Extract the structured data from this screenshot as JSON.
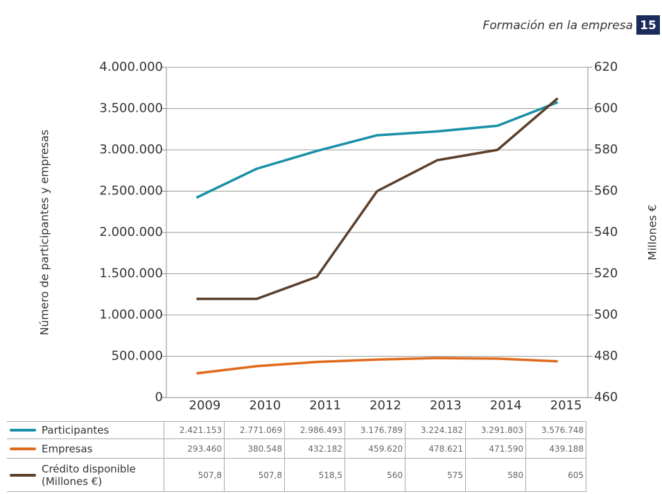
{
  "header": {
    "title": "Formación en la empresa",
    "page": 15
  },
  "chart_data": {
    "type": "line",
    "categories": [
      "2009",
      "2010",
      "2011",
      "2012",
      "2013",
      "2014",
      "2015"
    ],
    "ylabel": "Número de participantes y empresas",
    "y2label": "Millones €",
    "ylim": [
      0,
      4000000
    ],
    "yticks": [
      0,
      {
        "value": 500000,
        "label": "500.000"
      },
      {
        "value": 1000000,
        "label": "1.000.000"
      },
      {
        "value": 1500000,
        "label": "1.500.000"
      },
      {
        "value": 2000000,
        "label": "2.000.000"
      },
      {
        "value": 2500000,
        "label": "2.500.000"
      },
      {
        "value": 3000000,
        "label": "3.000.000"
      },
      {
        "value": 3500000,
        "label": "3.500.000"
      },
      {
        "value": 4000000,
        "label": "4.000.000"
      }
    ],
    "y2lim": [
      460,
      620
    ],
    "y2ticks": [
      460,
      480,
      500,
      520,
      540,
      560,
      580,
      600,
      620
    ],
    "grid": true,
    "series": [
      {
        "name": "Participantes",
        "color": "#1a8fa8",
        "values": [
          2421153,
          2771069,
          2986493,
          3176789,
          3224182,
          3291803,
          3576748
        ],
        "value_labels": [
          "2.421.153",
          "2.771.069",
          "2.986.493",
          "3.176.789",
          "3.224.182",
          "3.291.803",
          "3.576.748"
        ]
      },
      {
        "name": "Empresas",
        "color": "#e06a1b",
        "values": [
          293460,
          380548,
          432182,
          459620,
          478621,
          471590,
          439188
        ],
        "value_labels": [
          "293.460",
          "380.548",
          "432.182",
          "459.620",
          "478.621",
          "471.590",
          "439.188"
        ]
      },
      {
        "name": "Crédito disponible (Millones €)",
        "color": "#5a3f2b",
        "axis": "y2",
        "values": [
          507.8,
          507.8,
          518.5,
          560,
          575,
          580,
          605
        ],
        "value_labels": [
          "507,8",
          "507,8",
          "518,5",
          "560",
          "575",
          "580",
          "605"
        ]
      }
    ]
  }
}
